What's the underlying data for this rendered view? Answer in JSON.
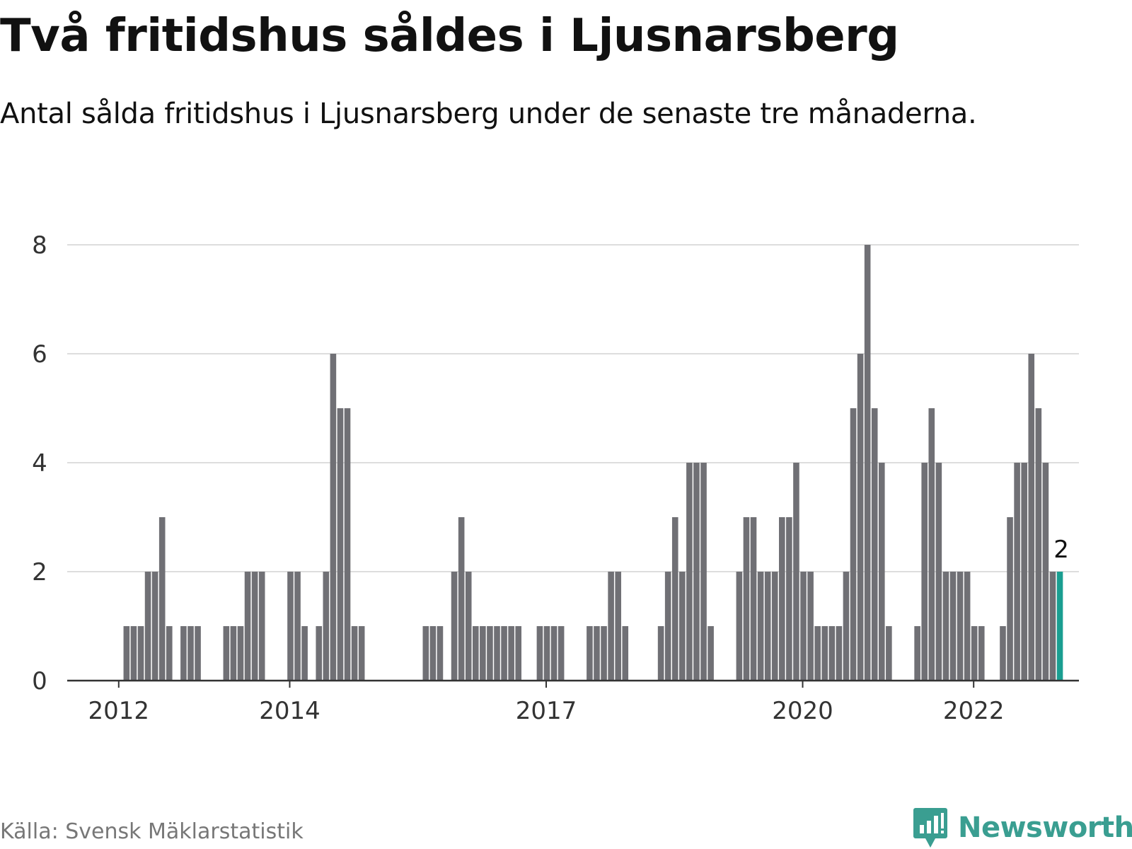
{
  "header": {
    "title": "Två fritidshus såldes i Ljusnarsberg",
    "subtitle": "Antal sålda fritidshus i Ljusnarsberg under de senaste tre månaderna."
  },
  "footer": {
    "source": "Källa: Svensk Mäklarstatistik",
    "brand": "Newsworthy",
    "brand_icon": "bar-chart-speech-bubble-icon"
  },
  "colors": {
    "bar": "#707075",
    "highlight": "#1a9e91",
    "grid": "#dddddd",
    "axis": "#333333",
    "brand": "#3a9e91"
  },
  "chart_data": {
    "type": "bar",
    "title": "",
    "xlabel": "",
    "ylabel": "",
    "ylim": [
      0,
      8
    ],
    "yticks": [
      0,
      2,
      4,
      6,
      8
    ],
    "grid": true,
    "xticks": [
      {
        "label": "2012",
        "month": "2012-01"
      },
      {
        "label": "2014",
        "month": "2014-01"
      },
      {
        "label": "2017",
        "month": "2017-01"
      },
      {
        "label": "2020",
        "month": "2020-01"
      },
      {
        "label": "2022",
        "month": "2022-01"
      }
    ],
    "series": [
      {
        "months": [
          "2011-06",
          "2011-07",
          "2011-08",
          "2011-09",
          "2011-10",
          "2011-11",
          "2011-12",
          "2012-01",
          "2012-02",
          "2012-03",
          "2012-04",
          "2012-05",
          "2012-06",
          "2012-07",
          "2012-08",
          "2012-09",
          "2012-10",
          "2012-11",
          "2012-12",
          "2013-01",
          "2013-02",
          "2013-03",
          "2013-04",
          "2013-05",
          "2013-06",
          "2013-07",
          "2013-08",
          "2013-09",
          "2013-10",
          "2013-11",
          "2013-12",
          "2014-01",
          "2014-02",
          "2014-03",
          "2014-04",
          "2014-05",
          "2014-06",
          "2014-07",
          "2014-08",
          "2014-09",
          "2014-10",
          "2014-11",
          "2014-12",
          "2015-01",
          "2015-02",
          "2015-03",
          "2015-04",
          "2015-05",
          "2015-06",
          "2015-07",
          "2015-08",
          "2015-09",
          "2015-10",
          "2015-11",
          "2015-12",
          "2016-01",
          "2016-02",
          "2016-03",
          "2016-04",
          "2016-05",
          "2016-06",
          "2016-07",
          "2016-08",
          "2016-09",
          "2016-10",
          "2016-11",
          "2016-12",
          "2017-01",
          "2017-02",
          "2017-03",
          "2017-04",
          "2017-05",
          "2017-06",
          "2017-07",
          "2017-08",
          "2017-09",
          "2017-10",
          "2017-11",
          "2017-12",
          "2018-01",
          "2018-02",
          "2018-03",
          "2018-04",
          "2018-05",
          "2018-06",
          "2018-07",
          "2018-08",
          "2018-09",
          "2018-10",
          "2018-11",
          "2018-12",
          "2019-01",
          "2019-02",
          "2019-03",
          "2019-04",
          "2019-05",
          "2019-06",
          "2019-07",
          "2019-08",
          "2019-09",
          "2019-10",
          "2019-11",
          "2019-12",
          "2020-01",
          "2020-02",
          "2020-03",
          "2020-04",
          "2020-05",
          "2020-06",
          "2020-07",
          "2020-08",
          "2020-09",
          "2020-10",
          "2020-11",
          "2020-12",
          "2021-01",
          "2021-02",
          "2021-03",
          "2021-04",
          "2021-05",
          "2021-06",
          "2021-07",
          "2021-08",
          "2021-09",
          "2021-10",
          "2021-11",
          "2021-12",
          "2022-01",
          "2022-02",
          "2022-03",
          "2022-04",
          "2022-05",
          "2022-06",
          "2022-07",
          "2022-08",
          "2022-09",
          "2022-10",
          "2022-11",
          "2022-12",
          "2023-01"
        ],
        "values": [
          0,
          0,
          0,
          0,
          0,
          0,
          0,
          0,
          1,
          1,
          1,
          2,
          2,
          3,
          1,
          0,
          1,
          1,
          1,
          0,
          0,
          0,
          1,
          1,
          1,
          2,
          2,
          2,
          0,
          0,
          0,
          2,
          2,
          1,
          0,
          1,
          2,
          6,
          5,
          5,
          1,
          1,
          0,
          0,
          0,
          0,
          0,
          0,
          0,
          0,
          1,
          1,
          1,
          0,
          2,
          3,
          2,
          1,
          1,
          1,
          1,
          1,
          1,
          1,
          0,
          0,
          1,
          1,
          1,
          1,
          0,
          0,
          0,
          1,
          1,
          1,
          2,
          2,
          1,
          0,
          0,
          0,
          0,
          1,
          2,
          3,
          2,
          4,
          4,
          4,
          1,
          0,
          0,
          0,
          2,
          3,
          3,
          2,
          2,
          2,
          3,
          3,
          4,
          2,
          2,
          1,
          1,
          1,
          1,
          2,
          5,
          6,
          8,
          5,
          4,
          1,
          0,
          0,
          0,
          1,
          4,
          5,
          4,
          2,
          2,
          2,
          2,
          1,
          1,
          0,
          0,
          1,
          3,
          4,
          4,
          6,
          5,
          4,
          2,
          2
        ],
        "highlight_last": true,
        "last_value_label": "2"
      }
    ]
  }
}
